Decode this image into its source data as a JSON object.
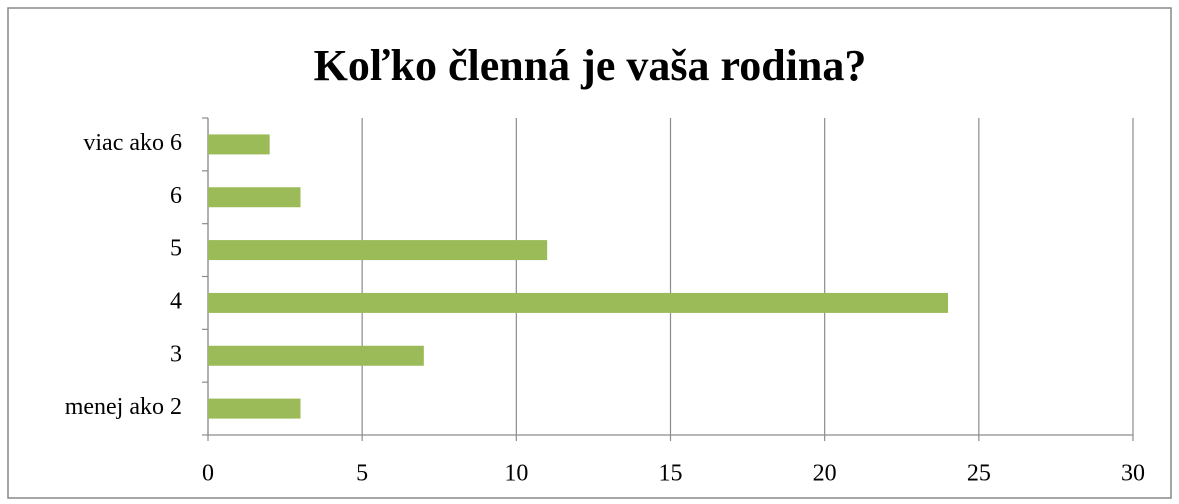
{
  "chart_data": {
    "type": "hbar",
    "title": "Koľko členná je vaša rodina?",
    "categories": [
      "menej ako 2",
      "3",
      "4",
      "5",
      "6",
      "viac ako 6"
    ],
    "values": [
      3,
      7,
      24,
      11,
      3,
      2
    ],
    "color": "#9bbb59",
    "xlim": [
      0,
      30
    ],
    "xticks": [
      0,
      5,
      10,
      15,
      20,
      25,
      30
    ],
    "grid": true
  }
}
